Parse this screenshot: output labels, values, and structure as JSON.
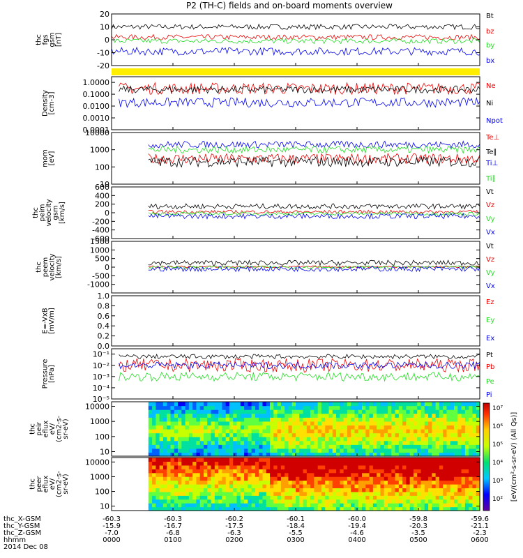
{
  "title": "P2 (TH-C) fields and on-board moments overview",
  "colors": {
    "black": "#000000",
    "red": "#ee0000",
    "green": "#22dd22",
    "blue": "#0000ee",
    "yellow": "#ffee00"
  },
  "chart_data": [
    {
      "type": "line",
      "ylabel_lines": [
        "thc",
        "fgs",
        "gsm",
        "[nT]"
      ],
      "ylim": [
        -20,
        20
      ],
      "yticks": [
        {
          "v": 20,
          "label": "20"
        },
        {
          "v": 10,
          "label": "10"
        },
        {
          "v": 0,
          "label": "0"
        },
        {
          "v": -10,
          "label": "-10"
        },
        {
          "v": -20,
          "label": "-20"
        }
      ],
      "series": [
        {
          "name": "Bt",
          "color": "#000000",
          "start": 0.0,
          "end": 1.0,
          "base": 10,
          "noise": 2
        },
        {
          "name": "bz",
          "color": "#ee0000",
          "start": 0.0,
          "end": 1.0,
          "base": 2,
          "noise": 2
        },
        {
          "name": "by",
          "color": "#22dd22",
          "start": 0.0,
          "end": 1.0,
          "base": -1,
          "noise": 2
        },
        {
          "name": "bx",
          "color": "#0000ee",
          "start": 0.0,
          "end": 1.0,
          "base": -9,
          "noise": 3
        }
      ]
    },
    {
      "type": "line",
      "scale": "log",
      "ylabel_lines": [
        "Density",
        "[cm-3]"
      ],
      "ylim": [
        0.0001,
        3
      ],
      "yticks": [
        {
          "v": 1,
          "label": "1.0000"
        },
        {
          "v": 0.1,
          "label": "0.1000"
        },
        {
          "v": 0.01,
          "label": "0.0100"
        },
        {
          "v": 0.001,
          "label": "0.0010"
        },
        {
          "v": 0.0001,
          "label": "0.0001"
        }
      ],
      "series": [
        {
          "name": "Ne",
          "color": "#ee0000",
          "start": 0.02,
          "end": 1.0,
          "base": 0.3,
          "noise": 0.5
        },
        {
          "name": "Ni",
          "color": "#000000",
          "start": 0.02,
          "end": 1.0,
          "base": 0.25,
          "noise": 0.3
        },
        {
          "name": "Npot",
          "color": "#0000ee",
          "start": 0.02,
          "end": 1.0,
          "base": 0.02,
          "noise": 0.4
        }
      ]
    },
    {
      "type": "line",
      "scale": "log",
      "ylabel_lines": [
        "mom",
        "[eV]"
      ],
      "ylim": [
        10,
        10000
      ],
      "yticks": [
        {
          "v": 10000,
          "label": "10000"
        },
        {
          "v": 1000,
          "label": "1000"
        },
        {
          "v": 100,
          "label": "100"
        },
        {
          "v": 10,
          "label": "10"
        }
      ],
      "series": [
        {
          "name": "Te⊥",
          "color": "#ee0000",
          "start": 0.1,
          "end": 1.0,
          "base": 300,
          "noise": 0.3
        },
        {
          "name": "Te∥",
          "color": "#000000",
          "start": 0.1,
          "end": 1.0,
          "base": 200,
          "noise": 0.3
        },
        {
          "name": "Ti⊥",
          "color": "#0000ee",
          "start": 0.1,
          "end": 1.0,
          "base": 2000,
          "noise": 0.2
        },
        {
          "name": "Ti∥",
          "color": "#22dd22",
          "start": 0.1,
          "end": 1.0,
          "base": 1000,
          "noise": 0.2
        }
      ]
    },
    {
      "type": "line",
      "ylabel_lines": [
        "thc",
        "peim",
        "velocity",
        "gsm",
        "[km/s]"
      ],
      "ylim": [
        -600,
        600
      ],
      "yticks": [
        {
          "v": 600,
          "label": "600"
        },
        {
          "v": 400,
          "label": "400"
        },
        {
          "v": 200,
          "label": "200"
        },
        {
          "v": 0,
          "label": "0"
        },
        {
          "v": -200,
          "label": "-200"
        },
        {
          "v": -400,
          "label": "-400"
        },
        {
          "v": -600,
          "label": "-600"
        }
      ],
      "series": [
        {
          "name": "Vt",
          "color": "#000000",
          "start": 0.1,
          "end": 1.0,
          "base": 150,
          "noise": 60
        },
        {
          "name": "Vz",
          "color": "#ee0000",
          "start": 0.1,
          "end": 1.0,
          "base": 20,
          "noise": 40
        },
        {
          "name": "Vy",
          "color": "#22dd22",
          "start": 0.1,
          "end": 1.0,
          "base": -20,
          "noise": 40
        },
        {
          "name": "Vx",
          "color": "#0000ee",
          "start": 0.1,
          "end": 1.0,
          "base": -80,
          "noise": 60
        }
      ]
    },
    {
      "type": "line",
      "ylabel_lines": [
        "thc",
        "peem",
        "velocity",
        "[km/s]"
      ],
      "ylim": [
        -1500,
        1500
      ],
      "yticks": [
        {
          "v": 1500,
          "label": "1500"
        },
        {
          "v": 1000,
          "label": "1000"
        },
        {
          "v": 500,
          "label": "500"
        },
        {
          "v": 0,
          "label": "0"
        },
        {
          "v": -500,
          "label": "-500"
        },
        {
          "v": -1000,
          "label": "-1000"
        }
      ],
      "series": [
        {
          "name": "Vt",
          "color": "#000000",
          "start": 0.1,
          "end": 1.0,
          "base": 250,
          "noise": 150
        },
        {
          "name": "Vz",
          "color": "#ee0000",
          "start": 0.1,
          "end": 1.0,
          "base": 20,
          "noise": 60
        },
        {
          "name": "Vy",
          "color": "#22dd22",
          "start": 0.1,
          "end": 1.0,
          "base": 0,
          "noise": 80
        },
        {
          "name": "Vx",
          "color": "#0000ee",
          "start": 0.1,
          "end": 1.0,
          "base": -100,
          "noise": 150
        }
      ]
    },
    {
      "type": "line",
      "ylabel_lines": [
        "E=-VxB",
        "[mV/m]"
      ],
      "ylim": [
        0,
        1
      ],
      "yticks": [
        {
          "v": 1,
          "label": "1.0"
        },
        {
          "v": 0.8,
          "label": "0.8"
        },
        {
          "v": 0.6,
          "label": "0.6"
        },
        {
          "v": 0.4,
          "label": "0.4"
        },
        {
          "v": 0.2,
          "label": "0.2"
        },
        {
          "v": 0,
          "label": "0.0"
        }
      ],
      "series": [
        {
          "name": "Ez",
          "color": "#ee0000",
          "start": 0,
          "end": 0,
          "base": 0,
          "noise": 0
        },
        {
          "name": "Ey",
          "color": "#22dd22",
          "start": 0,
          "end": 0,
          "base": 0,
          "noise": 0
        },
        {
          "name": "Ex",
          "color": "#0000ee",
          "start": 0,
          "end": 0,
          "base": 0,
          "noise": 0
        }
      ]
    },
    {
      "type": "line",
      "scale": "log",
      "ylabel_lines": [
        "Pressure",
        "[nPa]"
      ],
      "ylim": [
        1e-05,
        0.3
      ],
      "yticks": [
        {
          "v": 0.1,
          "label": "10⁻¹"
        },
        {
          "v": 0.01,
          "label": "10⁻²"
        },
        {
          "v": 0.001,
          "label": "10⁻³"
        },
        {
          "v": 0.0001,
          "label": "10⁻⁴"
        },
        {
          "v": 1e-05,
          "label": "10⁻⁵"
        }
      ],
      "series": [
        {
          "name": "Pt",
          "color": "#000000",
          "start": 0.02,
          "end": 1.0,
          "base": 0.06,
          "noise": 0.2
        },
        {
          "name": "Pb",
          "color": "#ee0000",
          "start": 0.02,
          "end": 1.0,
          "base": 0.01,
          "noise": 0.6
        },
        {
          "name": "Pe",
          "color": "#22dd22",
          "start": 0.02,
          "end": 1.0,
          "base": 0.001,
          "noise": 0.4
        },
        {
          "name": "Pi",
          "color": "#0000ee",
          "start": 0.02,
          "end": 1.0,
          "base": 0.01,
          "noise": 0.3
        }
      ]
    },
    {
      "type": "heatmap",
      "scale": "log",
      "ylabel_lines": [
        "thc",
        "peir",
        "eflux",
        "eV/",
        "(cm2-s-",
        "sr-eV)"
      ],
      "ylim": [
        5,
        20000
      ],
      "yticks": [
        {
          "v": 10000,
          "label": "10000"
        },
        {
          "v": 1000,
          "label": "1000"
        },
        {
          "v": 100,
          "label": "100"
        },
        {
          "v": 10,
          "label": "10"
        }
      ],
      "data_start": 0.1
    },
    {
      "type": "heatmap",
      "scale": "log",
      "ylabel_lines": [
        "thc",
        "peer",
        "eflux",
        "eV/",
        "(cm2-s-",
        "sr-eV)"
      ],
      "ylim": [
        5,
        20000
      ],
      "yticks": [
        {
          "v": 10000,
          "label": "10000"
        },
        {
          "v": 1000,
          "label": "1000"
        },
        {
          "v": 100,
          "label": "100"
        },
        {
          "v": 10,
          "label": "10"
        }
      ],
      "data_start": 0.1
    }
  ],
  "colorbar": {
    "label": "[eV/(cm²-s-sr-eV) (All Qs)]",
    "ticks": [
      "10⁷",
      "10⁶",
      "10⁵",
      "10⁴",
      "10³",
      "10²"
    ]
  },
  "x_axis": {
    "rows": [
      {
        "label": "thc_X-GSM",
        "values": [
          "-60.3",
          "-60.3",
          "-60.2",
          "-60.1",
          "-60.0",
          "-59.8",
          "-59.6"
        ]
      },
      {
        "label": "thc_Y-GSM",
        "values": [
          "-15.9",
          "-16.7",
          "-17.5",
          "-18.4",
          "-19.4",
          "-20.3",
          "-21.1"
        ]
      },
      {
        "label": "thc_Z-GSM",
        "values": [
          "-7.0",
          "-6.8",
          "-6.3",
          "-5.5",
          "-4.6",
          "-3.5",
          "-2.3"
        ]
      },
      {
        "label": "hhmm",
        "values": [
          "0000",
          "0100",
          "0200",
          "0300",
          "0400",
          "0500",
          "0600"
        ]
      }
    ],
    "date": "2014 Dec 08"
  }
}
